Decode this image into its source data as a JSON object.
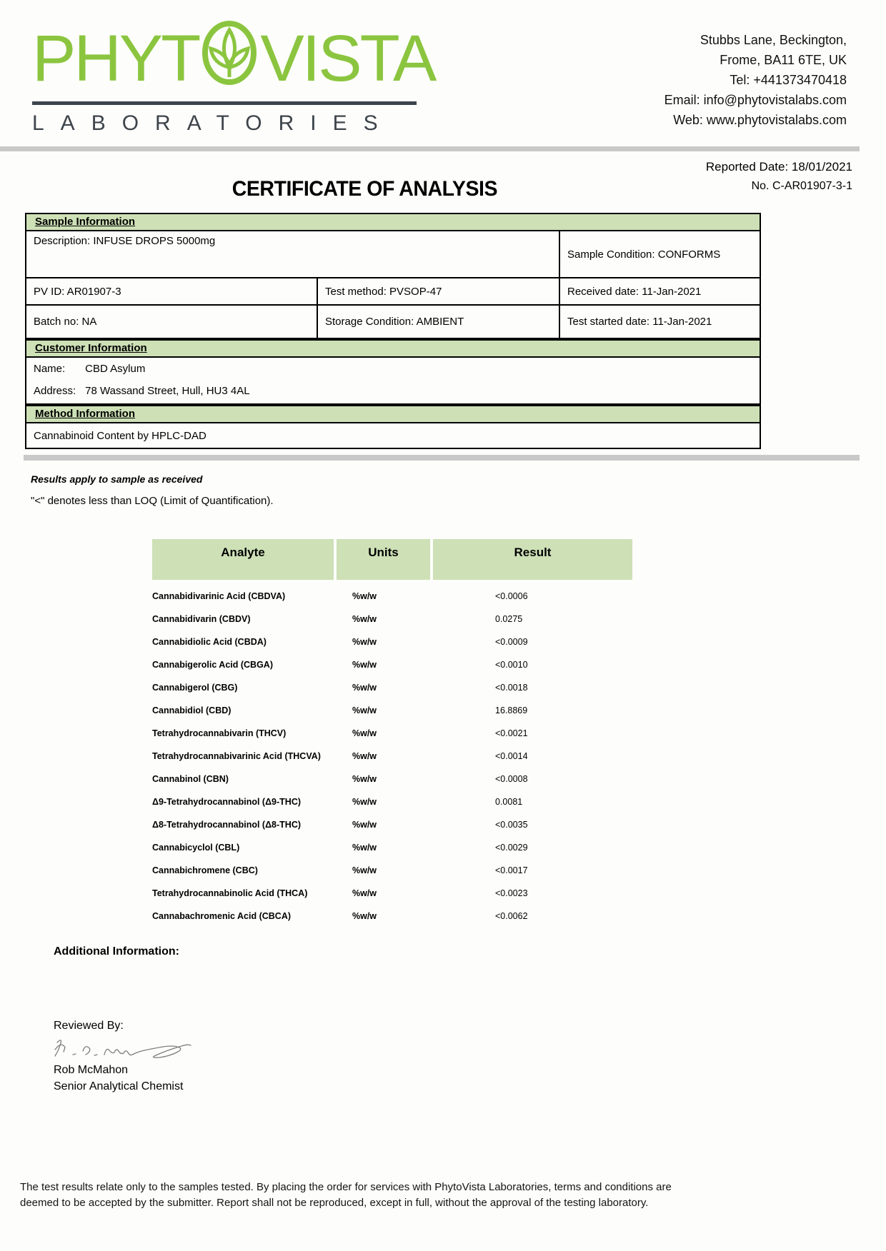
{
  "colors": {
    "brand_green": "#8bc53f",
    "section_green": "#cde0b6",
    "divider_gray": "#c9c9c9",
    "logo_dark": "#3d444b"
  },
  "logo": {
    "brand_prefix": "PHYT",
    "brand_suffix": "VISTA",
    "subtitle": "LABORATORIES"
  },
  "contact": {
    "lines": [
      "Stubbs Lane, Beckington,",
      "Frome, BA11 6TE, UK",
      "Tel: +441373470418",
      "Email: info@phytovistalabs.com",
      "Web: www.phytovistalabs.com"
    ]
  },
  "header": {
    "title": "CERTIFICATE OF ANALYSIS",
    "reported_date": "Reported Date: 18/01/2021",
    "report_no": "No. C-AR01907-3-1"
  },
  "sample_information": {
    "section_title": "Sample Information",
    "description": "Description: INFUSE DROPS 5000mg",
    "sample_condition": "Sample Condition: CONFORMS",
    "pv_id": "PV ID: AR01907-3",
    "test_method": "Test method: PVSOP-47",
    "received_date": "Received date: 11-Jan-2021",
    "batch_no": "Batch no: NA",
    "storage_condition": "Storage Condition: AMBIENT",
    "test_started_date": "Test started date: 11-Jan-2021"
  },
  "customer_information": {
    "section_title": "Customer Information",
    "name_label": "Name:",
    "name_value": "CBD Asylum",
    "address_label": "Address:",
    "address_value": "78 Wassand Street, Hull, HU3 4AL"
  },
  "method_information": {
    "section_title": "Method Information",
    "method": "Cannabinoid Content by HPLC-DAD"
  },
  "notes": {
    "note1": "Results apply to sample as received",
    "note2": "\"<\" denotes less than LOQ (Limit of Quantification)."
  },
  "results_table": {
    "columns": [
      "Analyte",
      "Units",
      "Result"
    ],
    "rows": [
      {
        "analyte": "Cannabidivarinic Acid (CBDVA)",
        "units": "%w/w",
        "result": "<0.0006"
      },
      {
        "analyte": "Cannabidivarin (CBDV)",
        "units": "%w/w",
        "result": "0.0275"
      },
      {
        "analyte": "Cannabidiolic Acid (CBDA)",
        "units": "%w/w",
        "result": "<0.0009"
      },
      {
        "analyte": "Cannabigerolic Acid (CBGA)",
        "units": "%w/w",
        "result": "<0.0010"
      },
      {
        "analyte": "Cannabigerol (CBG)",
        "units": "%w/w",
        "result": "<0.0018"
      },
      {
        "analyte": "Cannabidiol (CBD)",
        "units": "%w/w",
        "result": "16.8869"
      },
      {
        "analyte": "Tetrahydrocannabivarin (THCV)",
        "units": "%w/w",
        "result": "<0.0021"
      },
      {
        "analyte": "Tetrahydrocannabivarinic Acid (THCVA)",
        "units": "%w/w",
        "result": "<0.0014"
      },
      {
        "analyte": "Cannabinol (CBN)",
        "units": "%w/w",
        "result": "<0.0008"
      },
      {
        "analyte": "Δ9-Tetrahydrocannabinol (Δ9-THC)",
        "units": "%w/w",
        "result": "0.0081"
      },
      {
        "analyte": "Δ8-Tetrahydrocannabinol (Δ8-THC)",
        "units": "%w/w",
        "result": "<0.0035"
      },
      {
        "analyte": "Cannabicyclol (CBL)",
        "units": "%w/w",
        "result": "<0.0029"
      },
      {
        "analyte": "Cannabichromene (CBC)",
        "units": "%w/w",
        "result": "<0.0017"
      },
      {
        "analyte": "Tetrahydrocannabinolic Acid (THCA)",
        "units": "%w/w",
        "result": "<0.0023"
      },
      {
        "analyte": "Cannabachromenic Acid (CBCA)",
        "units": "%w/w",
        "result": "<0.0062"
      }
    ]
  },
  "additional_information": {
    "title": "Additional Information:"
  },
  "signoff": {
    "reviewed_by": "Reviewed By:",
    "reviewer_name": "Rob McMahon",
    "reviewer_title": "Senior Analytical Chemist"
  },
  "footer": {
    "line1": "The test results relate only to the samples tested.  By placing the order for services with PhytoVista Laboratories, terms and conditions are",
    "line2": "deemed to be accepted by the submitter. Report shall not be reproduced, except in full, without the approval of the testing laboratory."
  }
}
